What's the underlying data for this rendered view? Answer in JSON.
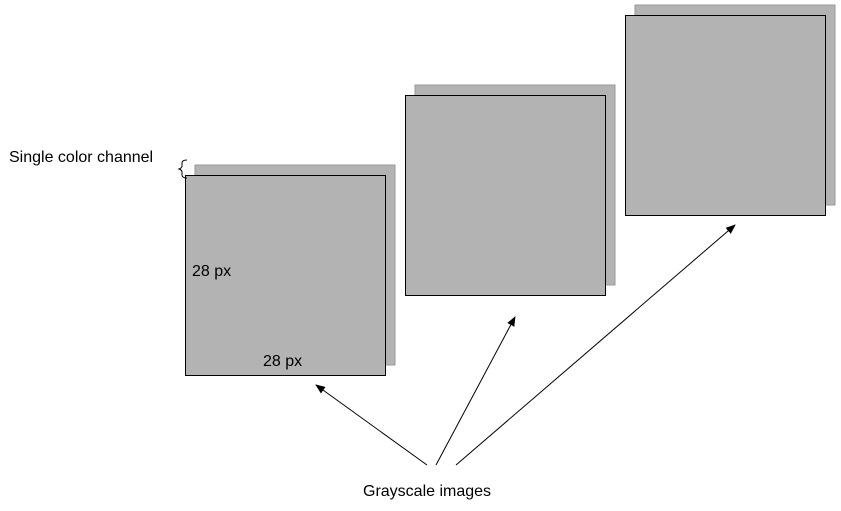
{
  "labels": {
    "channel": "Single color channel",
    "height": "28 px",
    "width": "28 px",
    "caption": "Grayscale images"
  },
  "colors": {
    "background": "#ffffff",
    "image_fill": "#b3b3b3",
    "stroke": "#000000",
    "shadow_stroke": "#999999"
  },
  "images": [
    {
      "name": "image-1",
      "channels": 1
    },
    {
      "name": "image-2",
      "channels": 1
    },
    {
      "name": "image-3",
      "channels": 1
    }
  ]
}
